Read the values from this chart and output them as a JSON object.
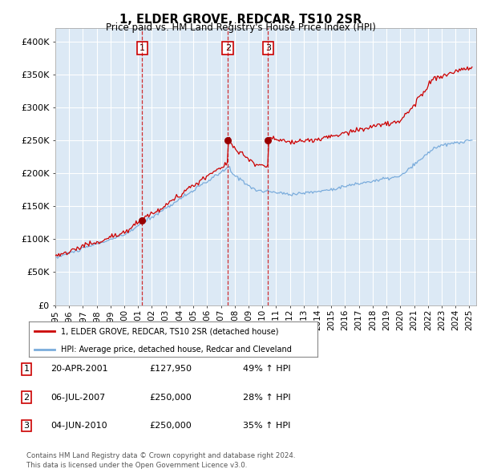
{
  "title": "1, ELDER GROVE, REDCAR, TS10 2SR",
  "subtitle": "Price paid vs. HM Land Registry's House Price Index (HPI)",
  "xlim_start": 1995.0,
  "xlim_end": 2025.5,
  "ylim": [
    0,
    420000
  ],
  "yticks": [
    0,
    50000,
    100000,
    150000,
    200000,
    250000,
    300000,
    350000,
    400000
  ],
  "ytick_labels": [
    "£0",
    "£50K",
    "£100K",
    "£150K",
    "£200K",
    "£250K",
    "£300K",
    "£350K",
    "£400K"
  ],
  "plot_bg_color": "#dce9f5",
  "fig_bg_color": "#ffffff",
  "grid_color": "#ffffff",
  "red_line_color": "#cc0000",
  "blue_line_color": "#7aacdc",
  "purchases": [
    {
      "num": 1,
      "date_dec": 2001.3,
      "price": 127950,
      "label": "1"
    },
    {
      "num": 2,
      "date_dec": 2007.51,
      "price": 250000,
      "label": "2"
    },
    {
      "num": 3,
      "date_dec": 2010.42,
      "price": 250000,
      "label": "3"
    }
  ],
  "legend_red_label": "1, ELDER GROVE, REDCAR, TS10 2SR (detached house)",
  "legend_blue_label": "HPI: Average price, detached house, Redcar and Cleveland",
  "table_rows": [
    {
      "num": "1",
      "date": "20-APR-2001",
      "price": "£127,950",
      "hpi": "49% ↑ HPI"
    },
    {
      "num": "2",
      "date": "06-JUL-2007",
      "price": "£250,000",
      "hpi": "28% ↑ HPI"
    },
    {
      "num": "3",
      "date": "04-JUN-2010",
      "price": "£250,000",
      "hpi": "35% ↑ HPI"
    }
  ],
  "footnote1": "Contains HM Land Registry data © Crown copyright and database right 2024.",
  "footnote2": "This data is licensed under the Open Government Licence v3.0.",
  "xtick_years": [
    1995,
    1996,
    1997,
    1998,
    1999,
    2000,
    2001,
    2002,
    2003,
    2004,
    2005,
    2006,
    2007,
    2008,
    2009,
    2010,
    2011,
    2012,
    2013,
    2014,
    2015,
    2016,
    2017,
    2018,
    2019,
    2020,
    2021,
    2022,
    2023,
    2024,
    2025
  ]
}
